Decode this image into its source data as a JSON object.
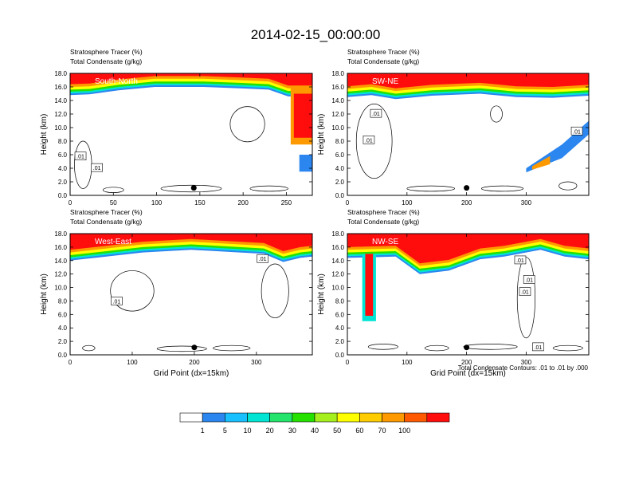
{
  "title": "2014-02-15_00:00:00",
  "contour_note": "Total Condensate Contours: .01 to .01 by .000",
  "chart_data": [
    {
      "type": "heatmap",
      "panel_label": "South-North",
      "line1": "Stratosphere Tracer   (%)",
      "line2": "Total Condensate   (g/kg)",
      "ylabel": "Height (km)",
      "xlabel": "",
      "xlim": [
        0,
        280
      ],
      "ylim": [
        0,
        18
      ],
      "xticks": [
        "0",
        "50",
        "100",
        "150",
        "200",
        "250"
      ],
      "yticks": [
        "0.0",
        "2.0",
        "4.0",
        "6.0",
        "8.0",
        "10.0",
        "12.0",
        "14.0",
        "16.0",
        "18.0"
      ],
      "contour_labels": [
        ".01",
        ".01"
      ],
      "marker_point": {
        "x": 143,
        "y": 1.1
      }
    },
    {
      "type": "heatmap",
      "panel_label": "SW-NE",
      "line1": "Stratosphere Tracer   (%)",
      "line2": "Total Condensate   (g/kg)",
      "ylabel": "Height (km)",
      "xlabel": "",
      "xlim": [
        0,
        405
      ],
      "ylim": [
        0,
        18
      ],
      "xticks": [
        "0",
        "100",
        "200",
        "300"
      ],
      "yticks": [
        "0.0",
        "2.0",
        "4.0",
        "6.0",
        "8.0",
        "10.0",
        "12.0",
        "14.0",
        "16.0",
        "18.0"
      ],
      "contour_labels": [
        ".01",
        ".01",
        ".01"
      ],
      "marker_point": {
        "x": 200,
        "y": 1.1
      }
    },
    {
      "type": "heatmap",
      "panel_label": "West-East",
      "line1": "Stratosphere Tracer   (%)",
      "line2": "Total Condensate   (g/kg)",
      "ylabel": "Height (km)",
      "xlabel": "Grid Point (dx=15km)",
      "xlim": [
        0,
        390
      ],
      "ylim": [
        0,
        18
      ],
      "xticks": [
        "0",
        "100",
        "200",
        "300"
      ],
      "yticks": [
        "0.0",
        "2.0",
        "4.0",
        "6.0",
        "8.0",
        "10.0",
        "12.0",
        "14.0",
        "16.0",
        "18.0"
      ],
      "contour_labels": [
        ".01",
        ".01"
      ],
      "marker_point": {
        "x": 200,
        "y": 1.1
      }
    },
    {
      "type": "heatmap",
      "panel_label": "NW-SE",
      "line1": "Stratosphere Tracer   (%)",
      "line2": "Total Condensate   (g/kg)",
      "ylabel": "Height (km)",
      "xlabel": "Grid Point (dx=15km)",
      "xlim": [
        0,
        405
      ],
      "ylim": [
        0,
        18
      ],
      "xticks": [
        "0",
        "100",
        "200",
        "300"
      ],
      "yticks": [
        "0.0",
        "2.0",
        "4.0",
        "6.0",
        "8.0",
        "10.0",
        "12.0",
        "14.0",
        "16.0",
        "18.0"
      ],
      "contour_labels": [
        ".01",
        ".01",
        ".01",
        ".01"
      ],
      "marker_point": {
        "x": 200,
        "y": 1.1
      }
    }
  ],
  "colorbar": {
    "labels": [
      "1",
      "5",
      "10",
      "20",
      "30",
      "40",
      "50",
      "60",
      "70",
      "100"
    ],
    "colors": [
      "#ffffff",
      "#2b86f0",
      "#19c0ff",
      "#00e5d3",
      "#25e46c",
      "#24e100",
      "#a6ef1f",
      "#ffff00",
      "#ffcc00",
      "#ff9900",
      "#ff5a00",
      "#ff0d0d"
    ]
  }
}
